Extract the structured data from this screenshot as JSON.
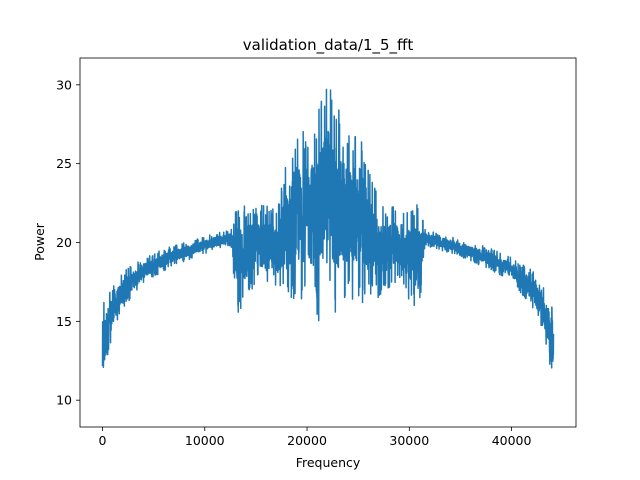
{
  "chart_data": {
    "type": "line",
    "title": "validation_data/1_5_fft",
    "xlabel": "Frequency",
    "ylabel": "Power",
    "xlim": [
      -2200,
      46300
    ],
    "ylim": [
      8.3,
      31.7
    ],
    "grid": false,
    "legend": "none",
    "xticks": [
      0,
      10000,
      20000,
      30000,
      40000
    ],
    "xtick_labels": [
      "0",
      "10000",
      "20000",
      "30000",
      "40000"
    ],
    "yticks": [
      10,
      15,
      20,
      25,
      30
    ],
    "ytick_labels": [
      "10",
      "15",
      "20",
      "25",
      "30"
    ],
    "series": [
      {
        "color": "#1f77b4",
        "x_range": [
          0,
          44100
        ],
        "description_points": [
          {
            "x": 0,
            "y_low": 9.3,
            "y_high": 16.6
          },
          {
            "x": 500,
            "y_low": 12.5,
            "y_high": 16.8
          },
          {
            "x": 1000,
            "y_low": 14.2,
            "y_high": 17.2
          },
          {
            "x": 2000,
            "y_low": 15.8,
            "y_high": 18.2
          },
          {
            "x": 4000,
            "y_low": 17.4,
            "y_high": 19.0
          },
          {
            "x": 6000,
            "y_low": 18.2,
            "y_high": 19.6
          },
          {
            "x": 8000,
            "y_low": 18.8,
            "y_high": 20.0
          },
          {
            "x": 10000,
            "y_low": 19.3,
            "y_high": 20.4
          },
          {
            "x": 12500,
            "y_low": 19.8,
            "y_high": 20.8
          },
          {
            "x": 13200,
            "y_low": 15.3,
            "y_high": 22.5
          },
          {
            "x": 15000,
            "y_low": 17.5,
            "y_high": 22.3
          },
          {
            "x": 17000,
            "y_low": 16.5,
            "y_high": 22.5
          },
          {
            "x": 18800,
            "y_low": 16.0,
            "y_high": 27.4
          },
          {
            "x": 20000,
            "y_low": 16.5,
            "y_high": 27.0
          },
          {
            "x": 21300,
            "y_low": 14.8,
            "y_high": 29.0
          },
          {
            "x": 22000,
            "y_low": 17.0,
            "y_high": 30.5
          },
          {
            "x": 22800,
            "y_low": 14.8,
            "y_high": 29.0
          },
          {
            "x": 24000,
            "y_low": 16.5,
            "y_high": 27.0
          },
          {
            "x": 25300,
            "y_low": 16.0,
            "y_high": 27.4
          },
          {
            "x": 27000,
            "y_low": 16.5,
            "y_high": 22.5
          },
          {
            "x": 29000,
            "y_low": 17.5,
            "y_high": 22.3
          },
          {
            "x": 30900,
            "y_low": 15.3,
            "y_high": 22.5
          },
          {
            "x": 31600,
            "y_low": 19.8,
            "y_high": 20.8
          },
          {
            "x": 34100,
            "y_low": 19.3,
            "y_high": 20.4
          },
          {
            "x": 36100,
            "y_low": 18.8,
            "y_high": 20.0
          },
          {
            "x": 38100,
            "y_low": 18.2,
            "y_high": 19.6
          },
          {
            "x": 40100,
            "y_low": 17.4,
            "y_high": 19.0
          },
          {
            "x": 42100,
            "y_low": 15.8,
            "y_high": 18.2
          },
          {
            "x": 43100,
            "y_low": 14.2,
            "y_high": 17.2
          },
          {
            "x": 43600,
            "y_low": 12.5,
            "y_high": 16.8
          },
          {
            "x": 44100,
            "y_low": 9.3,
            "y_high": 16.6
          }
        ]
      }
    ]
  }
}
